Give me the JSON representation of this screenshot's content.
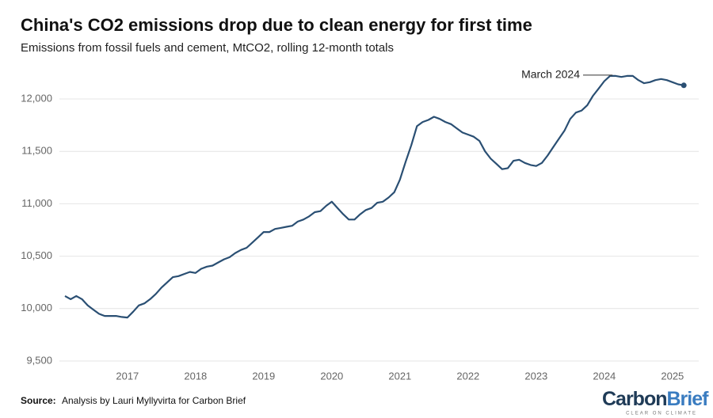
{
  "chart_data": {
    "type": "line",
    "title": "China's CO2 emissions drop due to clean energy for first time",
    "subtitle": "Emissions from fossil fuels and cement, MtCO2, rolling 12-month totals",
    "source_label": "Source:",
    "source": "Analysis by Lauri Myllyvirta for Carbon Brief",
    "logo": {
      "carbon": "Carbon",
      "brief": "Brief",
      "tagline": "CLEAR ON CLIMATE"
    },
    "annotation": "March 2024",
    "categories": [
      null,
      null,
      null,
      null,
      null,
      null,
      null,
      null,
      null,
      null,
      null,
      "2017",
      null,
      null,
      null,
      null,
      null,
      null,
      null,
      null,
      null,
      null,
      null,
      "2018",
      null,
      null,
      null,
      null,
      null,
      null,
      null,
      null,
      null,
      null,
      null,
      "2019",
      null,
      null,
      null,
      null,
      null,
      null,
      null,
      null,
      null,
      null,
      null,
      "2020",
      null,
      null,
      null,
      null,
      null,
      null,
      null,
      null,
      null,
      null,
      null,
      "2021",
      null,
      null,
      null,
      null,
      null,
      null,
      null,
      null,
      null,
      null,
      null,
      "2022",
      null,
      null,
      null,
      null,
      null,
      null,
      null,
      null,
      null,
      null,
      null,
      "2023",
      null,
      null,
      null,
      null,
      null,
      null,
      null,
      null,
      null,
      null,
      null,
      "2024",
      null,
      null,
      null,
      null,
      null,
      null,
      null,
      null,
      null,
      null,
      null,
      "2025",
      null,
      null
    ],
    "series": [
      {
        "name": "CO2 emissions",
        "color": "#2a4f73",
        "values": [
          10120,
          10090,
          10120,
          10090,
          10030,
          9990,
          9950,
          9930,
          9930,
          9930,
          9920,
          9915,
          9970,
          10030,
          10050,
          10090,
          10140,
          10200,
          10250,
          10300,
          10310,
          10330,
          10350,
          10340,
          10380,
          10400,
          10410,
          10440,
          10470,
          10490,
          10530,
          10560,
          10580,
          10630,
          10680,
          10730,
          10730,
          10760,
          10770,
          10780,
          10790,
          10830,
          10850,
          10880,
          10920,
          10930,
          10980,
          11020,
          10960,
          10900,
          10850,
          10850,
          10900,
          10940,
          10960,
          11010,
          11020,
          11060,
          11110,
          11230,
          11400,
          11560,
          11740,
          11780,
          11800,
          11830,
          11810,
          11780,
          11760,
          11720,
          11680,
          11660,
          11640,
          11600,
          11500,
          11430,
          11380,
          11330,
          11340,
          11410,
          11420,
          11390,
          11370,
          11360,
          11390,
          11460,
          11540,
          11620,
          11700,
          11810,
          11870,
          11890,
          11940,
          12030,
          12100,
          12170,
          12220,
          12220,
          12210,
          12220,
          12220,
          12180,
          12150,
          12160,
          12180,
          12190,
          12180,
          12160,
          12140,
          12130
        ]
      }
    ],
    "ylim": [
      9500,
      12300
    ],
    "yticks": [
      {
        "value": 9500,
        "label": "9,500"
      },
      {
        "value": 10000,
        "label": "10,000"
      },
      {
        "value": 10500,
        "label": "10,500"
      },
      {
        "value": 11000,
        "label": "11,000"
      },
      {
        "value": 11500,
        "label": "11,500"
      },
      {
        "value": 12000,
        "label": "12,000"
      }
    ],
    "grid": true
  }
}
